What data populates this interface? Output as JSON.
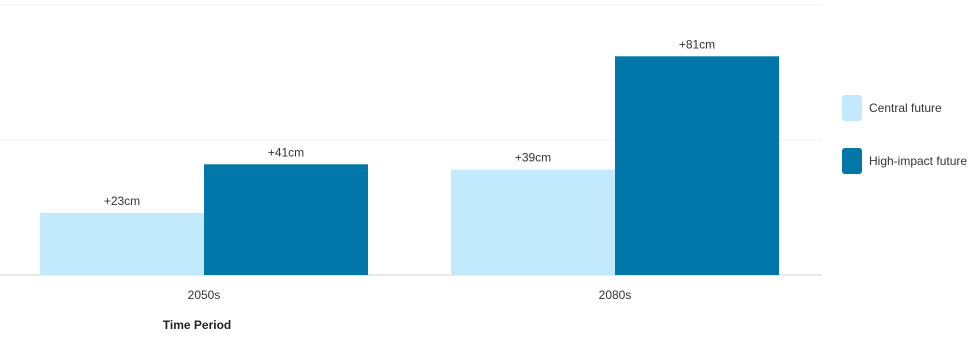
{
  "chart_data": {
    "type": "bar",
    "categories": [
      "2050s",
      "2080s"
    ],
    "series": [
      {
        "name": "Central future",
        "values": [
          23,
          39
        ],
        "labels": [
          "+23cm",
          "+39cm"
        ],
        "color": "#c2eafc"
      },
      {
        "name": "High-impact future",
        "values": [
          41,
          81
        ],
        "labels": [
          "+41cm",
          "+81cm"
        ],
        "color": "#0077a8"
      }
    ],
    "title": "",
    "xlabel": "Time Period",
    "ylabel": "",
    "ylim": [
      0,
      100
    ],
    "grid": true,
    "legend_position": "right"
  }
}
